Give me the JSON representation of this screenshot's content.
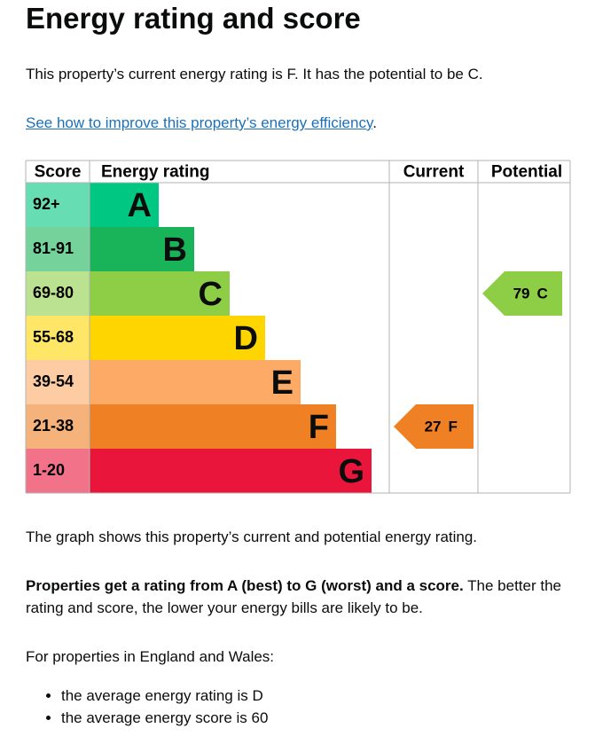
{
  "heading": "Energy rating and score",
  "intro": "This property’s current energy rating is F. It has the potential to be C.",
  "link": {
    "text": "See how to improve this property’s energy efficiency",
    "end": "."
  },
  "table": {
    "headers": [
      "Score",
      "Energy rating",
      "Current",
      "Potential"
    ],
    "bands": [
      {
        "score": "92+",
        "letter": "A",
        "color": "#00c781"
      },
      {
        "score": "81-91",
        "letter": "B",
        "color": "#19b459"
      },
      {
        "score": "69-80",
        "letter": "C",
        "color": "#8dce46"
      },
      {
        "score": "55-68",
        "letter": "D",
        "color": "#ffd500"
      },
      {
        "score": "39-54",
        "letter": "E",
        "color": "#fcaa65"
      },
      {
        "score": "21-38",
        "letter": "F",
        "color": "#ef8023"
      },
      {
        "score": "1-20",
        "letter": "G",
        "color": "#e9153b"
      }
    ],
    "current": {
      "score": 27,
      "letter": "F"
    },
    "potential": {
      "score": 79,
      "letter": "C"
    }
  },
  "graph_note": "The graph shows this property’s current and potential energy rating.",
  "rating_text": {
    "bold": "Properties get a rating from A (best) to G (worst) and a score.",
    "rest": "The better the rating and score, the lower your energy bills are likely to be."
  },
  "region_note": "For properties in England and Wales:",
  "bullets": [
    "the average energy rating is D",
    "the average energy score is 60"
  ]
}
